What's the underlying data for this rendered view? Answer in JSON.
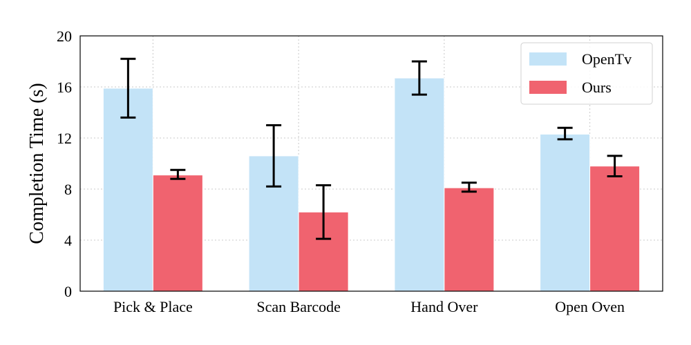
{
  "chart_data": {
    "type": "bar",
    "xlabel": "",
    "ylabel": "Completion Time (s)",
    "ylim": [
      0,
      20
    ],
    "yticks": [
      "0",
      "4",
      "8",
      "12",
      "16",
      "20"
    ],
    "categories": [
      "Pick & Place",
      "Scan Barcode",
      "Hand Over",
      "Open Oven"
    ],
    "series": [
      {
        "name": "OpenTv",
        "color": "#c3e3f7",
        "values": [
          15.9,
          10.6,
          16.7,
          12.3
        ],
        "err_low": [
          13.6,
          8.2,
          15.4,
          11.9
        ],
        "err_high": [
          18.2,
          13.0,
          18.0,
          12.8
        ]
      },
      {
        "name": "Ours",
        "color": "#f0636f",
        "values": [
          9.1,
          6.2,
          8.1,
          9.8
        ],
        "err_low": [
          8.8,
          4.1,
          7.8,
          9.0
        ],
        "err_high": [
          9.5,
          8.3,
          8.5,
          10.6
        ]
      }
    ],
    "grid": true,
    "legend": "top-right"
  }
}
